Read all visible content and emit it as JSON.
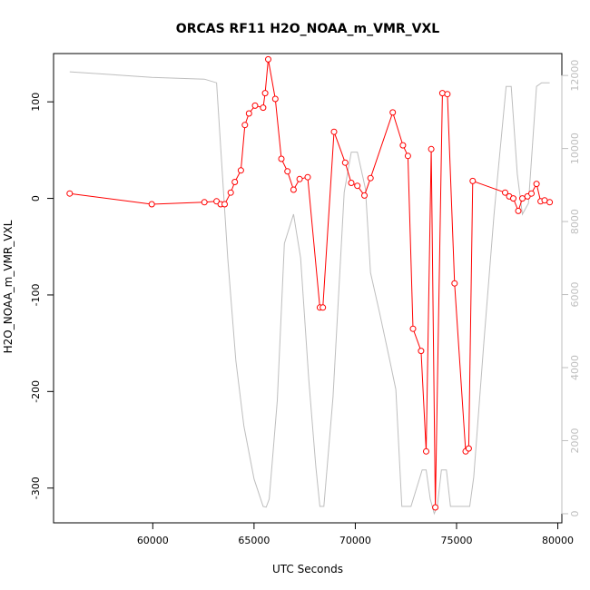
{
  "chart_data": {
    "type": "line",
    "title": "ORCAS RF11 H2O_NOAA_m_VMR_VXL",
    "xlabel": "UTC Seconds",
    "ylabel": "H2O_NOAA_m_VMR_VXL",
    "xlim": [
      55100,
      80200
    ],
    "ylim": [
      -336,
      150
    ],
    "y2lim": [
      -250,
      12600
    ],
    "x_ticks": [
      60000,
      65000,
      70000,
      75000,
      80000
    ],
    "y_ticks": [
      -300,
      -200,
      -100,
      0,
      100
    ],
    "y2_ticks": [
      0,
      2000,
      4000,
      6000,
      8000,
      10000,
      12000
    ],
    "grid": false,
    "legend": "none",
    "colors": {
      "primary": "#ff0000",
      "secondary": "#bebebe"
    },
    "series": [
      {
        "axis": "left",
        "style": "line+points",
        "color": "#ff0000",
        "x": [
          55900,
          59950,
          62550,
          63150,
          63350,
          63550,
          63850,
          64050,
          64350,
          64550,
          64750,
          65050,
          65450,
          65550,
          65700,
          66050,
          66350,
          66650,
          66950,
          67250,
          67650,
          68250,
          68400,
          68950,
          69500,
          69800,
          70100,
          70450,
          70750,
          71850,
          72350,
          72600,
          72850,
          73250,
          73500,
          73750,
          73950,
          74300,
          74550,
          74900,
          75450,
          75600,
          75800,
          77400,
          77600,
          77800,
          78050,
          78250,
          78500,
          78700,
          78950,
          79150,
          79350,
          79600
        ],
        "y": [
          5,
          -6,
          -4,
          -3,
          -6,
          -6,
          6,
          17,
          29,
          76,
          88,
          96,
          94,
          109,
          144,
          103,
          41,
          28,
          9,
          20,
          22,
          -113,
          -113,
          69,
          37,
          16,
          13,
          3,
          21,
          89,
          55,
          44,
          -135,
          -158,
          -262,
          51,
          -320,
          109,
          108,
          -88,
          -262,
          -259,
          18,
          6,
          2,
          0,
          -13,
          0,
          2,
          5,
          15,
          -3,
          -2,
          -4
        ]
      },
      {
        "axis": "right",
        "style": "line",
        "color": "#bebebe",
        "x": [
          55900,
          59950,
          62550,
          63150,
          63700,
          64100,
          64500,
          65000,
          65450,
          65600,
          65750,
          66150,
          66500,
          66950,
          67300,
          67700,
          68050,
          68250,
          68450,
          68900,
          69450,
          69800,
          70100,
          70500,
          70750,
          71200,
          71700,
          72000,
          72300,
          72750,
          73300,
          73500,
          73700,
          73900,
          74050,
          74250,
          74500,
          74700,
          74950,
          75200,
          75650,
          75850,
          76350,
          76850,
          77450,
          77700,
          78000,
          78250,
          78550,
          78950,
          79200,
          79600
        ],
        "y": [
          12100,
          11950,
          11900,
          11800,
          7000,
          4200,
          2400,
          950,
          200,
          180,
          400,
          3100,
          7400,
          8200,
          7000,
          3700,
          1300,
          200,
          200,
          3200,
          8800,
          9900,
          9900,
          8900,
          6600,
          5500,
          4200,
          3400,
          200,
          200,
          1200,
          1200,
          400,
          0,
          200,
          1200,
          1200,
          200,
          200,
          200,
          200,
          1000,
          4700,
          8200,
          11700,
          11700,
          9300,
          8200,
          8500,
          11700,
          11800,
          11800
        ]
      }
    ]
  }
}
